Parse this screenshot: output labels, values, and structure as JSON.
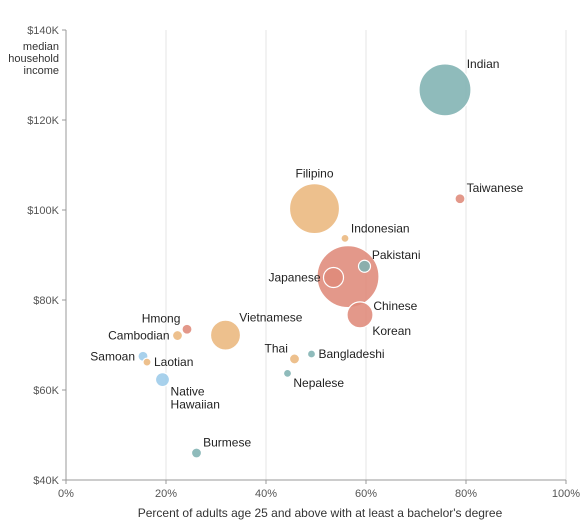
{
  "chart_data": {
    "type": "scatter",
    "title": "",
    "xlabel": "Percent of adults age 25 and above with at least a bachelor's degree",
    "ylabel_lines": [
      "median",
      "household",
      "income"
    ],
    "xlim": [
      0,
      100
    ],
    "ylim": [
      40000,
      140000
    ],
    "x_ticks": [
      {
        "value": 0,
        "label": "0%"
      },
      {
        "value": 20,
        "label": "20%"
      },
      {
        "value": 40,
        "label": "40%"
      },
      {
        "value": 60,
        "label": "60%"
      },
      {
        "value": 80,
        "label": "80%"
      },
      {
        "value": 100,
        "label": "100%"
      }
    ],
    "y_ticks": [
      {
        "value": 40000,
        "label": "$40K"
      },
      {
        "value": 60000,
        "label": "$60K"
      },
      {
        "value": 80000,
        "label": "$80K"
      },
      {
        "value": 100000,
        "label": "$100K"
      },
      {
        "value": 120000,
        "label": "$120K"
      },
      {
        "value": 140000,
        "label": "$140K"
      }
    ],
    "grid": {
      "vertical": true,
      "horizontal": false
    },
    "colors": {
      "teal": "#7fb2b2",
      "tan": "#ebb77d",
      "red": "#df8a7a",
      "blue": "#9ccbe9"
    },
    "points": [
      {
        "label": "Indian",
        "x": 75.8,
        "y": 126700,
        "size": 26,
        "color": "teal",
        "label_lines": [
          "Indian"
        ],
        "anchor": "ne"
      },
      {
        "label": "Taiwanese",
        "x": 78.8,
        "y": 102500,
        "size": 5,
        "color": "red",
        "label_lines": [
          "Taiwanese"
        ],
        "anchor": "ne"
      },
      {
        "label": "Filipino",
        "x": 49.7,
        "y": 100300,
        "size": 25,
        "color": "tan",
        "label_lines": [
          "Filipino"
        ],
        "anchor": "n"
      },
      {
        "label": "Indonesian",
        "x": 55.8,
        "y": 93700,
        "size": 4,
        "color": "tan",
        "label_lines": [
          "Indonesian"
        ],
        "anchor": "ne"
      },
      {
        "label": "Chinese",
        "x": 56.4,
        "y": 85200,
        "size": 31,
        "color": "red",
        "label_lines": [
          "Chinese"
        ],
        "anchor": "se"
      },
      {
        "label": "Pakistani",
        "x": 59.7,
        "y": 87500,
        "size": 6,
        "color": "teal",
        "label_lines": [
          "Pakistani"
        ],
        "anchor": "ne"
      },
      {
        "label": "Japanese",
        "x": 53.5,
        "y": 85000,
        "size": 10,
        "color": "red",
        "label_lines": [
          "Japanese"
        ],
        "anchor": "w"
      },
      {
        "label": "Korean",
        "x": 58.8,
        "y": 76700,
        "size": 13,
        "color": "red",
        "label_lines": [
          "Korean"
        ],
        "anchor": "se"
      },
      {
        "label": "Vietnamese",
        "x": 31.9,
        "y": 72200,
        "size": 15,
        "color": "tan",
        "label_lines": [
          "Vietnamese"
        ],
        "anchor": "ne"
      },
      {
        "label": "Hmong",
        "x": 24.2,
        "y": 73500,
        "size": 5,
        "color": "red",
        "label_lines": [
          "Hmong"
        ],
        "anchor": "nw"
      },
      {
        "label": "Cambodian",
        "x": 22.3,
        "y": 72100,
        "size": 5,
        "color": "tan",
        "label_lines": [
          "Cambodian"
        ],
        "anchor": "w"
      },
      {
        "label": "Bangladeshi",
        "x": 49.1,
        "y": 68000,
        "size": 4,
        "color": "teal",
        "label_lines": [
          "Bangladeshi"
        ],
        "anchor": "e"
      },
      {
        "label": "Thai",
        "x": 45.7,
        "y": 66900,
        "size": 5,
        "color": "tan",
        "label_lines": [
          "Thai"
        ],
        "anchor": "nw"
      },
      {
        "label": "Samoan",
        "x": 15.4,
        "y": 67500,
        "size": 5,
        "color": "blue",
        "label_lines": [
          "Samoan"
        ],
        "anchor": "w"
      },
      {
        "label": "Laotian",
        "x": 16.2,
        "y": 66200,
        "size": 4,
        "color": "tan",
        "label_lines": [
          "Laotian"
        ],
        "anchor": "e"
      },
      {
        "label": "Nepalese",
        "x": 44.3,
        "y": 63700,
        "size": 4,
        "color": "teal",
        "label_lines": [
          "Nepalese"
        ],
        "anchor": "se"
      },
      {
        "label": "Native Hawaiian",
        "x": 19.3,
        "y": 62300,
        "size": 7,
        "color": "blue",
        "label_lines": [
          "Native",
          "Hawaiian"
        ],
        "anchor": "se"
      },
      {
        "label": "Burmese",
        "x": 26.1,
        "y": 46000,
        "size": 5,
        "color": "teal",
        "label_lines": [
          "Burmese"
        ],
        "anchor": "ne"
      }
    ]
  }
}
